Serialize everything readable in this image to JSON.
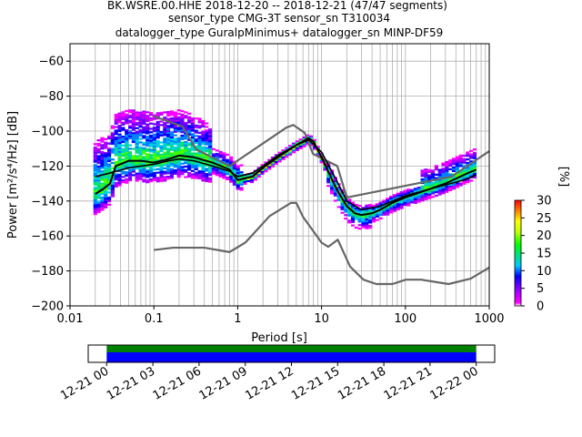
{
  "chart_data": [
    {
      "type": "heatmap",
      "title": "BK.WSRE.00.HHE   2018-12-20 -- 2018-12-21  (47/47 segments)",
      "title_line2": "sensor_type CMG-3T sensor_sn T310034",
      "title_line3": "datalogger_type GuralpMinimus+ datalogger_sn MINP-DF59",
      "xlabel": "Period [s]",
      "ylabel": "Power [m²/s⁴/Hz] [dB]",
      "x_scale": "log",
      "xlim": [
        0.01,
        1000
      ],
      "ylim": [
        -200,
        -50
      ],
      "grid": true,
      "x_tick_labels": [
        "0.01",
        "0.1",
        "1",
        "10",
        "100",
        "1000"
      ],
      "y_tick_labels": [
        "−60",
        "−80",
        "−100",
        "−120",
        "−140",
        "−160",
        "−180",
        "−200"
      ],
      "y_ticks": [
        -60,
        -80,
        -100,
        -120,
        -140,
        -160,
        -180,
        -200
      ],
      "x_ticks": [
        0.01,
        0.1,
        1,
        10,
        100,
        1000
      ],
      "colorbar": {
        "label": "[%]",
        "range": [
          0,
          30
        ],
        "tick_labels": [
          "0",
          "5",
          "10",
          "15",
          "20",
          "25",
          "30"
        ],
        "ticks": [
          0,
          5,
          10,
          15,
          20,
          25,
          30
        ]
      },
      "series": [
        {
          "role": "mode",
          "color": "#000000",
          "x": [
            0.02,
            0.025,
            0.03,
            0.035,
            0.05,
            0.07,
            0.1,
            0.15,
            0.2,
            0.3,
            0.5,
            0.8,
            1.0,
            1.5,
            2,
            3,
            4,
            5,
            6,
            7,
            8,
            10,
            15,
            20,
            25,
            30,
            40,
            50,
            70,
            100,
            150,
            200,
            300,
            500,
            700
          ],
          "y": [
            -136,
            -133,
            -130,
            -120,
            -117,
            -117,
            -118,
            -116,
            -114,
            -115,
            -118,
            -122,
            -128,
            -126,
            -121,
            -115,
            -111,
            -108,
            -106,
            -104,
            -106,
            -115,
            -133,
            -143,
            -147,
            -148,
            -147,
            -145,
            -141,
            -138,
            -135,
            -133,
            -130,
            -125,
            -122
          ]
        },
        {
          "role": "mean",
          "color": "#000000",
          "x": [
            0.02,
            0.03,
            0.05,
            0.07,
            0.1,
            0.15,
            0.2,
            0.3,
            0.5,
            0.8,
            1.0,
            1.5,
            2,
            3,
            5,
            7,
            10,
            15,
            20,
            30,
            50,
            100,
            200,
            500,
            700
          ],
          "y": [
            -126,
            -124,
            -121,
            -120,
            -119,
            -117,
            -116,
            -117,
            -120,
            -123,
            -126,
            -124,
            -120,
            -114,
            -108,
            -105,
            -112,
            -128,
            -140,
            -145,
            -143,
            -137,
            -133,
            -128,
            -125
          ]
        },
        {
          "role": "noise-model-high",
          "color": "#666666",
          "x": [
            0.1,
            0.22,
            0.32,
            0.8,
            3.8,
            4.6,
            6.3,
            7.9,
            15.4,
            20,
            354.8,
            1000
          ],
          "y": [
            -91.5,
            -97.4,
            -110.5,
            -120,
            -98,
            -96.5,
            -101,
            -113,
            -120,
            -138,
            -126,
            -111.5
          ]
        },
        {
          "role": "noise-model-low",
          "color": "#666666",
          "x": [
            0.1,
            0.17,
            0.4,
            0.8,
            1.24,
            2.4,
            4.3,
            5.0,
            6.0,
            10.0,
            12.0,
            15.6,
            21.9,
            31.6,
            45,
            70,
            101,
            154,
            328,
            600,
            1000
          ],
          "y": [
            -168,
            -166.7,
            -166.7,
            -169.2,
            -163.7,
            -148.6,
            -141.1,
            -141.1,
            -149,
            -163.8,
            -166.2,
            -162.1,
            -177.5,
            -185,
            -187.5,
            -187.5,
            -185,
            -185,
            -187.5,
            -184.4,
            -178
          ]
        }
      ]
    },
    {
      "type": "timeline",
      "x_tick_labels": [
        "12-21 00",
        "12-21 03",
        "12-21 06",
        "12-21 09",
        "12-21 12",
        "12-21 15",
        "12-21 18",
        "12-21 21",
        "12-22 00"
      ],
      "x_ticks_hours": [
        0,
        3,
        6,
        9,
        12,
        15,
        18,
        21,
        24
      ],
      "xlim_hours": [
        -1.2,
        25.2
      ],
      "bars": [
        {
          "role": "segments",
          "color": "#008000",
          "start_hour": 0,
          "end_hour": 24
        },
        {
          "role": "coverage",
          "color": "#0000ff",
          "start_hour": 0,
          "end_hour": 24
        }
      ]
    }
  ]
}
